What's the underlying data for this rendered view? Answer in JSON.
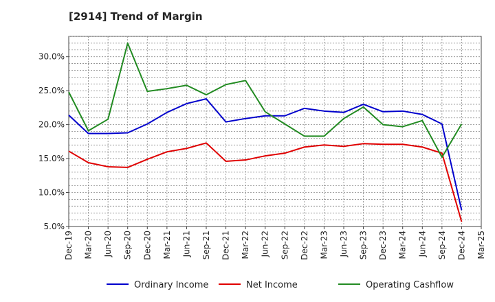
{
  "chart_data": {
    "type": "line",
    "title": "[2914]  Trend of Margin",
    "xlabel": "",
    "ylabel": "",
    "categories": [
      "Dec-19",
      "Mar-20",
      "Jun-20",
      "Sep-20",
      "Dec-20",
      "Mar-21",
      "Jun-21",
      "Sep-21",
      "Dec-21",
      "Mar-22",
      "Jun-22",
      "Sep-22",
      "Dec-22",
      "Mar-23",
      "Jun-23",
      "Sep-23",
      "Dec-23",
      "Mar-24",
      "Jun-24",
      "Sep-24",
      "Dec-24",
      "Mar-25"
    ],
    "yticks": [
      "5.0%",
      "10.0%",
      "15.0%",
      "20.0%",
      "25.0%",
      "30.0%"
    ],
    "ylim": [
      5,
      33
    ],
    "grid": true,
    "legend_position": "bottom",
    "series": [
      {
        "name": "Ordinary Income",
        "color": "#0000cc",
        "values": [
          21.4,
          18.7,
          18.7,
          18.8,
          20.1,
          21.8,
          23.1,
          23.8,
          20.4,
          20.9,
          21.3,
          21.3,
          22.4,
          22.0,
          21.8,
          23.0,
          21.9,
          22.0,
          21.5,
          20.1,
          7.4,
          null
        ]
      },
      {
        "name": "Net Income",
        "color": "#e00000",
        "values": [
          16.1,
          14.4,
          13.8,
          13.7,
          14.9,
          16.0,
          16.5,
          17.3,
          14.6,
          14.8,
          15.4,
          15.8,
          16.7,
          17.0,
          16.8,
          17.2,
          17.1,
          17.1,
          16.7,
          15.8,
          5.7,
          null
        ]
      },
      {
        "name": "Operating Cashflow",
        "color": "#228b22",
        "values": [
          24.8,
          19.1,
          20.8,
          32.0,
          24.9,
          25.3,
          25.8,
          24.4,
          25.9,
          26.5,
          21.9,
          20.1,
          18.3,
          18.3,
          20.9,
          22.6,
          20.0,
          19.7,
          20.6,
          15.2,
          20.1,
          null
        ]
      }
    ]
  }
}
